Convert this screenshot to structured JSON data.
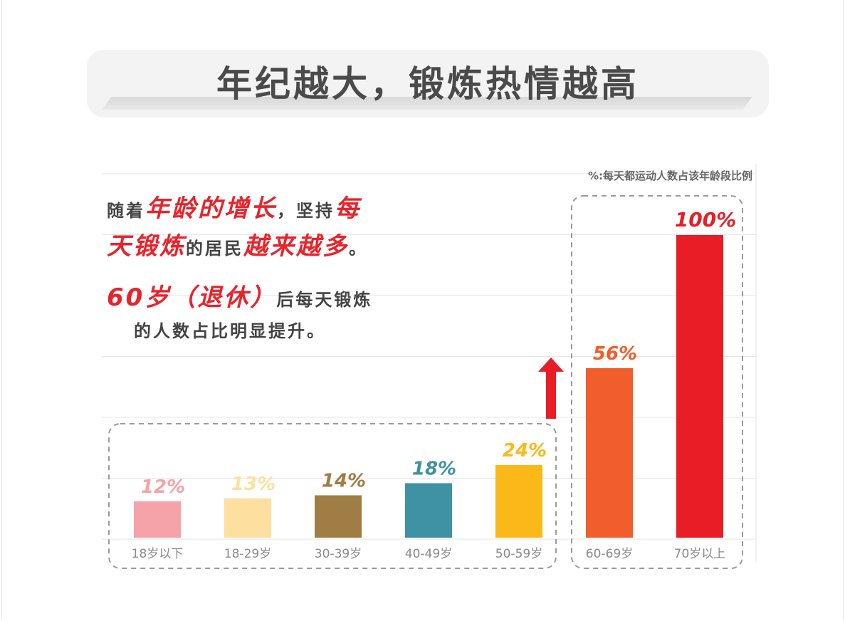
{
  "title": "年纪越大，锻炼热情越高",
  "legend_note": "%:每天都运动人数占该年龄段比例",
  "description": {
    "line1_a": "随着",
    "line1_b": "年龄的增长",
    "line1_c": "，坚持",
    "line1_d": "每",
    "line2_a": "天锻炼",
    "line2_b": "的居民",
    "line2_c": "越来越多",
    "line2_d": "。",
    "line3_a": "60岁（退休）",
    "line3_b": "后每天锻炼",
    "line4": "的人数占比明显提升。"
  },
  "chart_data": {
    "type": "bar",
    "title": "年纪越大，锻炼热情越高",
    "ylabel": "%:每天都运动人数占该年龄段比例",
    "ylim": [
      0,
      100
    ],
    "categories": [
      "18岁以下",
      "18-29岁",
      "30-39岁",
      "40-49岁",
      "50-59岁",
      "60-69岁",
      "70岁以上"
    ],
    "values": [
      12,
      13,
      14,
      18,
      24,
      56,
      100
    ],
    "labels": [
      "12%",
      "13%",
      "14%",
      "18%",
      "24%",
      "56%",
      "100%"
    ],
    "colors": [
      "#f5a3a8",
      "#fde0a0",
      "#a07d45",
      "#3e92a3",
      "#fbb819",
      "#f15d2b",
      "#e81d25"
    ],
    "groups": [
      {
        "name": "before-60",
        "categories": [
          "18岁以下",
          "18-29岁",
          "30-39岁",
          "40-49岁",
          "50-59岁"
        ]
      },
      {
        "name": "after-60",
        "categories": [
          "60-69岁",
          "70岁以上"
        ]
      }
    ],
    "grid": true
  }
}
